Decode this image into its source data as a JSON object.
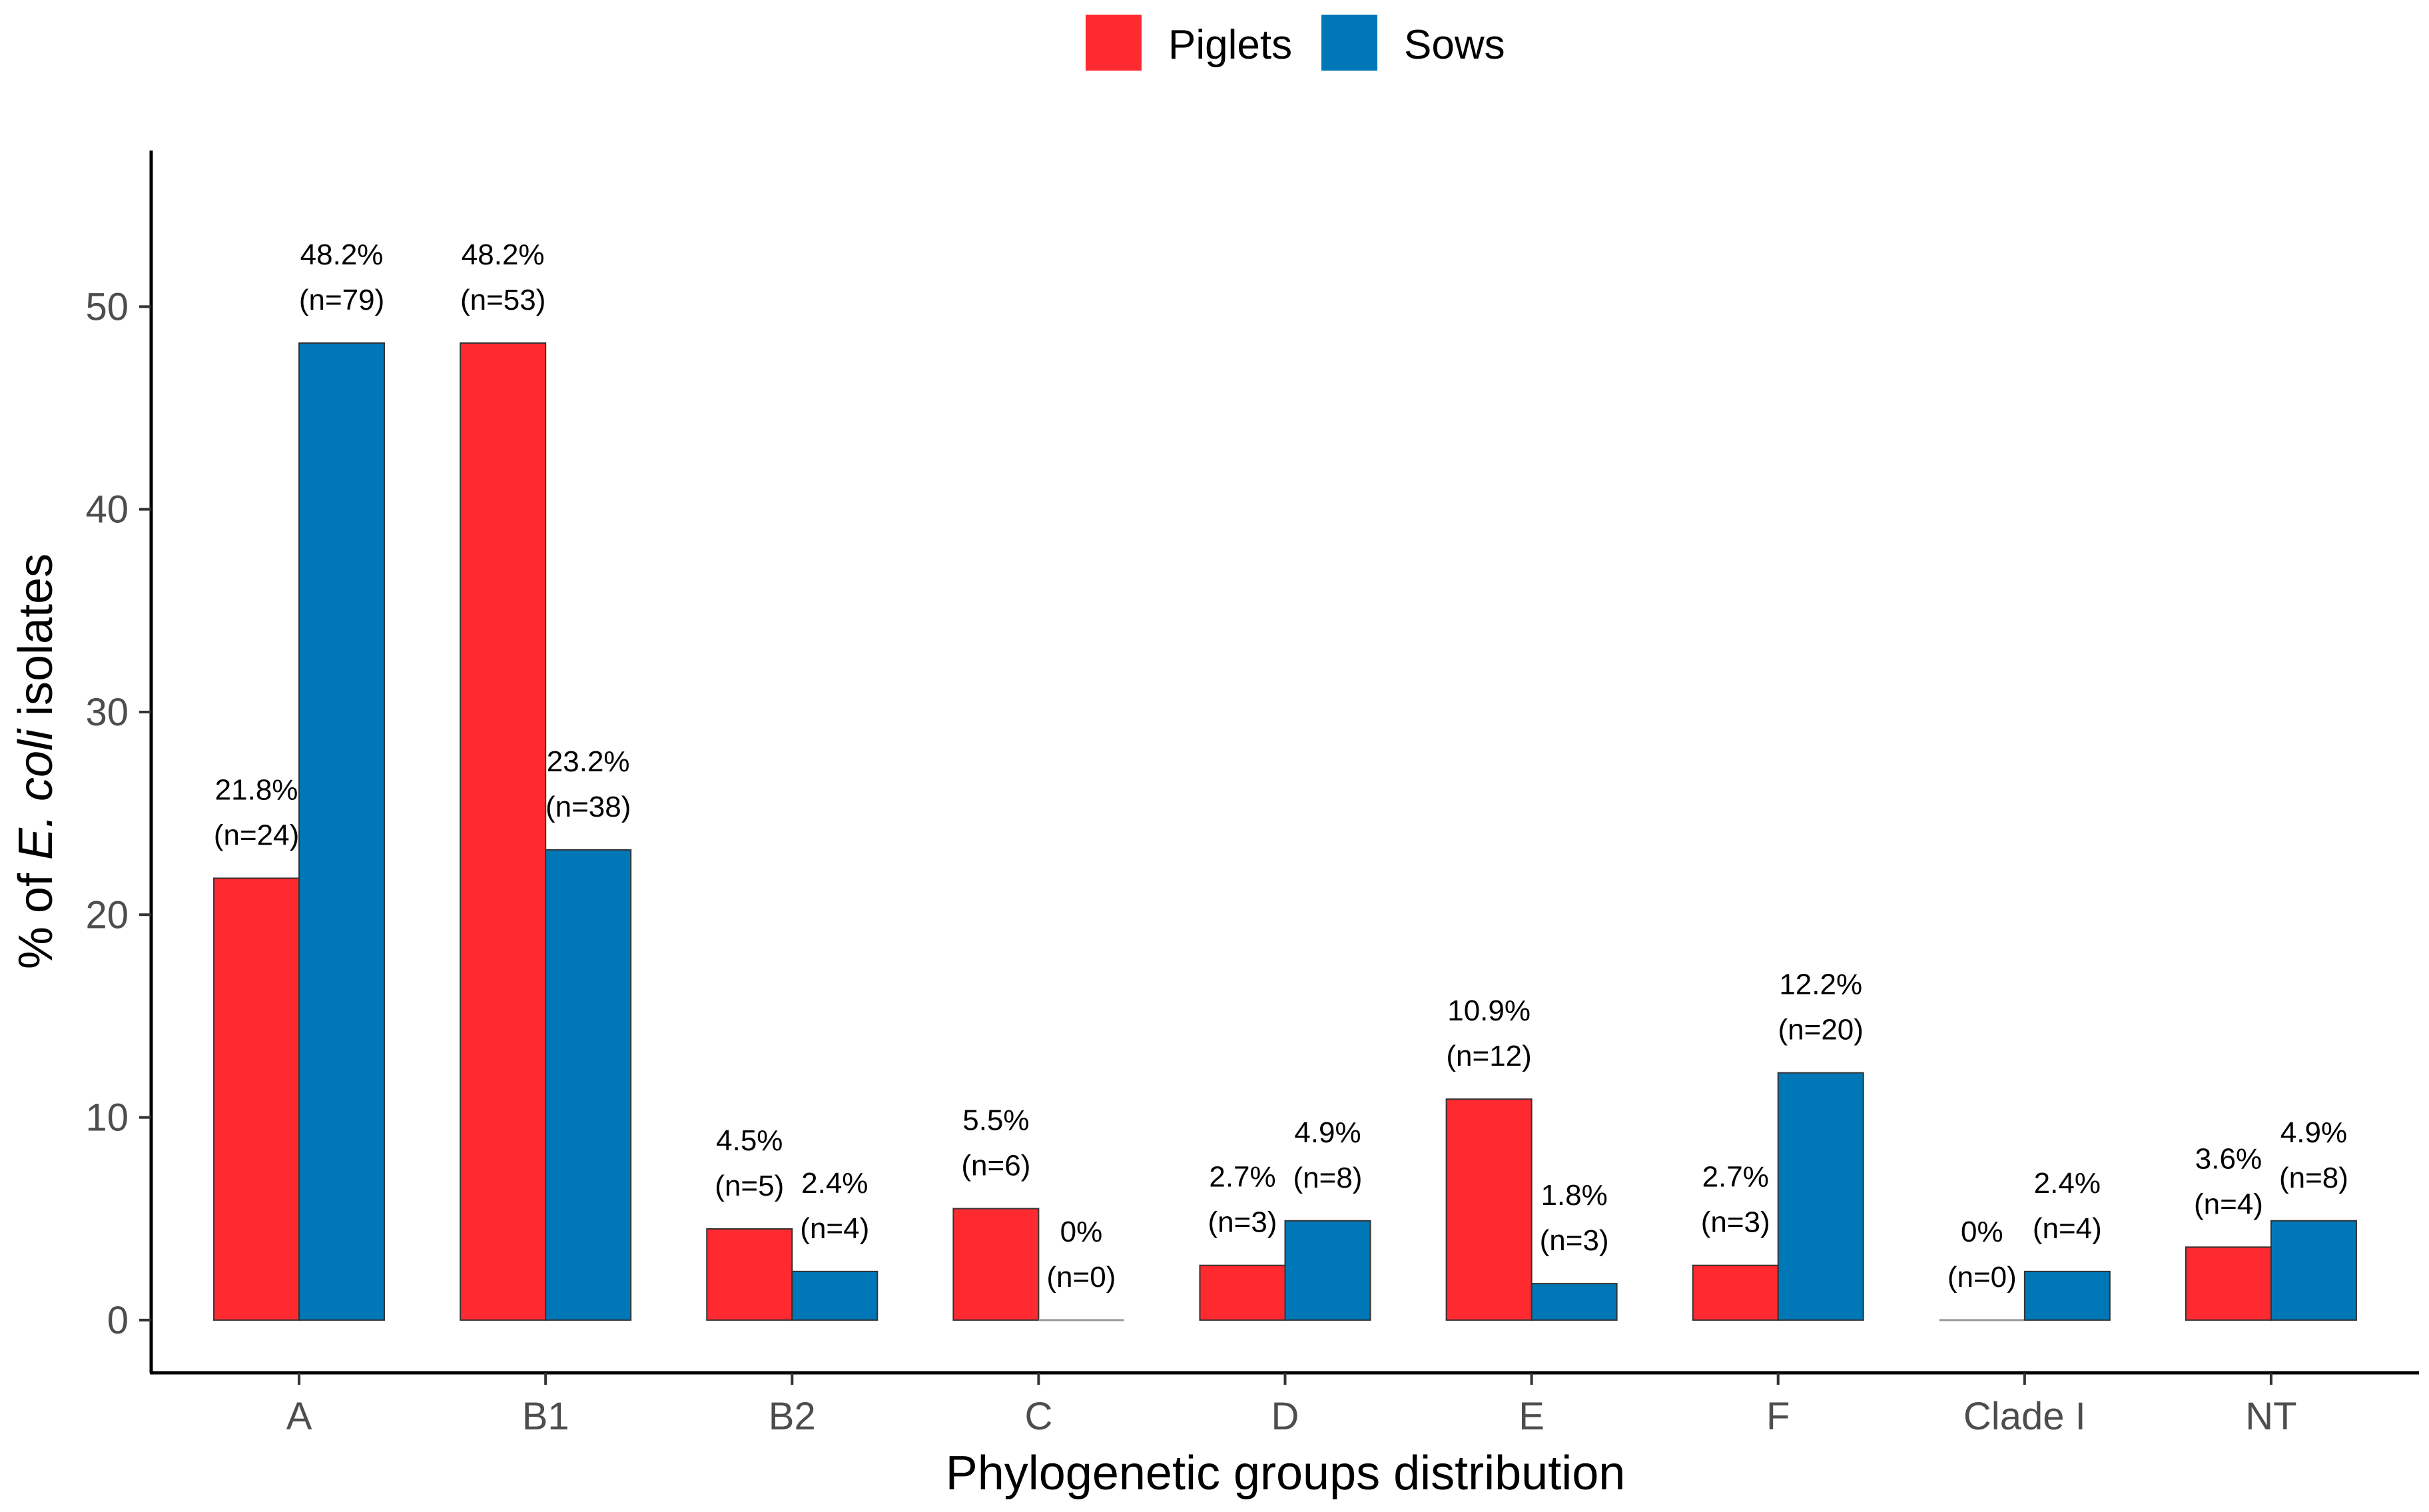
{
  "chart_data": {
    "type": "bar",
    "categories": [
      "A",
      "B1",
      "B2",
      "C",
      "D",
      "E",
      "F",
      "Clade I",
      "NT"
    ],
    "series": [
      {
        "name": "Piglets",
        "color": "#ff2a2f",
        "values": [
          21.8,
          48.2,
          4.5,
          5.5,
          2.7,
          10.9,
          2.7,
          0,
          3.6
        ],
        "labels": [
          "21.8%",
          "48.2%",
          "4.5%",
          "5.5%",
          "2.7%",
          "10.9%",
          "2.7%",
          "0%",
          "3.6%"
        ],
        "counts": [
          "(n=24)",
          "(n=53)",
          "(n=5)",
          "(n=6)",
          "(n=3)",
          "(n=12)",
          "(n=3)",
          "(n=0)",
          "(n=4)"
        ]
      },
      {
        "name": "Sows",
        "color": "#0077b6",
        "values": [
          48.2,
          23.2,
          2.4,
          0,
          4.9,
          1.8,
          12.2,
          2.4,
          4.9
        ],
        "labels": [
          "48.2%",
          "23.2%",
          "2.4%",
          "0%",
          "4.9%",
          "1.8%",
          "12.2%",
          "2.4%",
          "4.9%"
        ],
        "counts": [
          "(n=79)",
          "(n=38)",
          "(n=4)",
          "(n=0)",
          "(n=8)",
          "(n=3)",
          "(n=20)",
          "(n=4)",
          "(n=8)"
        ]
      }
    ],
    "xlabel": "Phylogenetic groups distribution",
    "ylabel_parts": [
      "% of ",
      "E. coli",
      " isolates"
    ],
    "ylim": [
      -2.6,
      57.7
    ],
    "yticks": [
      0,
      10,
      20,
      30,
      40,
      50
    ],
    "grid": false,
    "legend_position": "top"
  }
}
